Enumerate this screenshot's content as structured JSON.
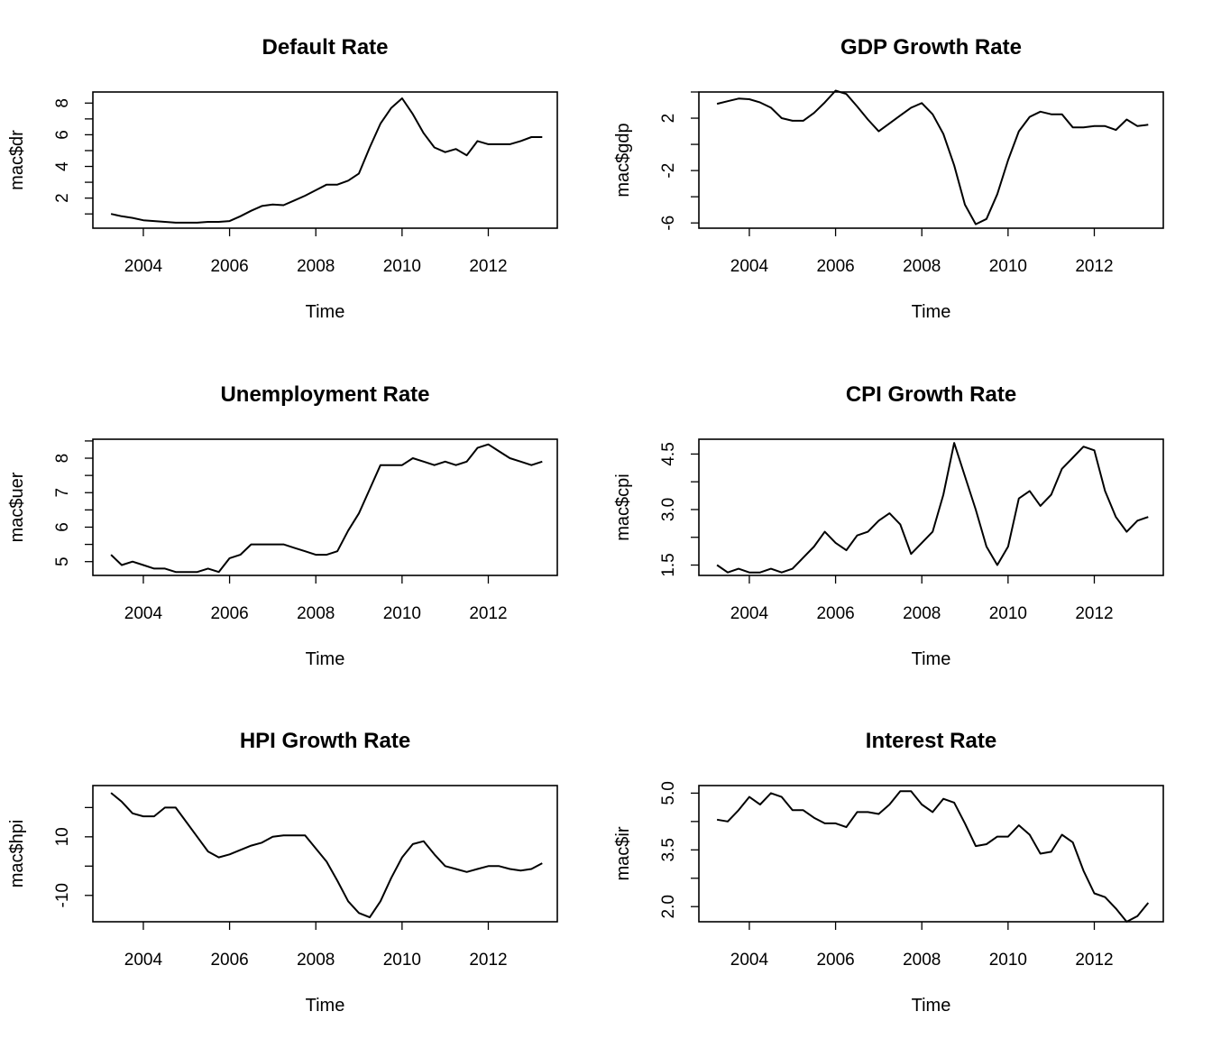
{
  "chart_data": [
    {
      "type": "line",
      "title": "Default Rate",
      "xlabel": "Time",
      "ylabel": "mac$dr",
      "x_ticks": [
        "2004",
        "2006",
        "2008",
        "2010",
        "2012"
      ],
      "y_ticks": [
        "2",
        "4",
        "6",
        "8"
      ],
      "xlim": [
        2002.83,
        2013.6
      ],
      "ylim": [
        0.1,
        8.7
      ],
      "x": [
        2003.25,
        2003.5,
        2003.75,
        2004.0,
        2004.25,
        2004.5,
        2004.75,
        2005.0,
        2005.25,
        2005.5,
        2005.75,
        2006.0,
        2006.25,
        2006.5,
        2006.75,
        2007.0,
        2007.25,
        2007.5,
        2007.75,
        2008.0,
        2008.25,
        2008.5,
        2008.75,
        2009.0,
        2009.25,
        2009.5,
        2009.75,
        2010.0,
        2010.25,
        2010.5,
        2010.75,
        2011.0,
        2011.25,
        2011.5,
        2011.75,
        2012.0,
        2012.25,
        2012.5,
        2012.75,
        2013.0,
        2013.25
      ],
      "values": [
        1.0,
        0.85,
        0.75,
        0.6,
        0.55,
        0.5,
        0.45,
        0.45,
        0.45,
        0.5,
        0.5,
        0.55,
        0.85,
        1.2,
        1.5,
        1.6,
        1.55,
        1.85,
        2.15,
        2.5,
        2.85,
        2.85,
        3.1,
        3.55,
        5.2,
        6.7,
        7.7,
        8.3,
        7.3,
        6.1,
        5.2,
        4.9,
        5.1,
        4.7,
        5.6,
        5.4,
        5.4,
        5.4,
        5.6,
        5.85,
        5.85
      ]
    },
    {
      "type": "line",
      "title": "GDP Growth Rate",
      "xlabel": "Time",
      "ylabel": "mac$gdp",
      "x_ticks": [
        "2004",
        "2006",
        "2008",
        "2010",
        "2012"
      ],
      "y_ticks": [
        "-6",
        "-2",
        "2"
      ],
      "xlim": [
        2002.83,
        2013.6
      ],
      "ylim": [
        -6.4,
        4.0
      ],
      "x": [
        2003.25,
        2003.5,
        2003.75,
        2004.0,
        2004.25,
        2004.5,
        2004.75,
        2005.0,
        2005.25,
        2005.5,
        2005.75,
        2006.0,
        2006.25,
        2006.5,
        2006.75,
        2007.0,
        2007.25,
        2007.5,
        2007.75,
        2008.0,
        2008.25,
        2008.5,
        2008.75,
        2009.0,
        2009.25,
        2009.5,
        2009.75,
        2010.0,
        2010.25,
        2010.5,
        2010.75,
        2011.0,
        2011.25,
        2011.5,
        2011.75,
        2012.0,
        2012.25,
        2012.5,
        2012.75,
        2013.0,
        2013.25
      ],
      "values": [
        3.1,
        3.3,
        3.5,
        3.45,
        3.2,
        2.8,
        2.0,
        1.8,
        1.8,
        2.4,
        3.2,
        4.1,
        3.85,
        2.9,
        1.9,
        1.0,
        1.6,
        2.2,
        2.8,
        3.15,
        2.3,
        0.8,
        -1.6,
        -4.6,
        -6.1,
        -5.7,
        -3.8,
        -1.2,
        1.0,
        2.1,
        2.5,
        2.3,
        2.3,
        1.3,
        1.3,
        1.4,
        1.4,
        1.1,
        1.9,
        1.4,
        1.5
      ]
    },
    {
      "type": "line",
      "title": "Unemployment Rate",
      "xlabel": "Time",
      "ylabel": "mac$uer",
      "x_ticks": [
        "2004",
        "2006",
        "2008",
        "2010",
        "2012"
      ],
      "y_ticks": [
        "5",
        "6",
        "7",
        "8"
      ],
      "xlim": [
        2002.83,
        2013.6
      ],
      "ylim": [
        4.6,
        8.55
      ],
      "x": [
        2003.25,
        2003.5,
        2003.75,
        2004.0,
        2004.25,
        2004.5,
        2004.75,
        2005.0,
        2005.25,
        2005.5,
        2005.75,
        2006.0,
        2006.25,
        2006.5,
        2006.75,
        2007.0,
        2007.25,
        2007.5,
        2007.75,
        2008.0,
        2008.25,
        2008.5,
        2008.75,
        2009.0,
        2009.25,
        2009.5,
        2009.75,
        2010.0,
        2010.25,
        2010.5,
        2010.75,
        2011.0,
        2011.25,
        2011.5,
        2011.75,
        2012.0,
        2012.25,
        2012.5,
        2012.75,
        2013.0,
        2013.25
      ],
      "values": [
        5.2,
        4.9,
        5.0,
        4.9,
        4.8,
        4.8,
        4.7,
        4.7,
        4.7,
        4.8,
        4.7,
        5.1,
        5.2,
        5.5,
        5.5,
        5.5,
        5.5,
        5.4,
        5.3,
        5.2,
        5.2,
        5.3,
        5.9,
        6.4,
        7.1,
        7.8,
        7.8,
        7.8,
        8.0,
        7.9,
        7.8,
        7.9,
        7.8,
        7.9,
        8.3,
        8.4,
        8.2,
        8.0,
        7.9,
        7.8,
        7.9
      ]
    },
    {
      "type": "line",
      "title": "CPI Growth Rate",
      "xlabel": "Time",
      "ylabel": "mac$cpi",
      "x_ticks": [
        "2004",
        "2006",
        "2008",
        "2010",
        "2012"
      ],
      "y_ticks": [
        "1.5",
        "3.0",
        "4.5"
      ],
      "xlim": [
        2002.83,
        2013.6
      ],
      "ylim": [
        1.22,
        4.9
      ],
      "x": [
        2003.25,
        2003.5,
        2003.75,
        2004.0,
        2004.25,
        2004.5,
        2004.75,
        2005.0,
        2005.25,
        2005.5,
        2005.75,
        2006.0,
        2006.25,
        2006.5,
        2006.75,
        2007.0,
        2007.25,
        2007.5,
        2007.75,
        2008.0,
        2008.25,
        2008.5,
        2008.75,
        2009.0,
        2009.25,
        2009.5,
        2009.75,
        2010.0,
        2010.25,
        2010.5,
        2010.75,
        2011.0,
        2011.25,
        2011.5,
        2011.75,
        2012.0,
        2012.25,
        2012.5,
        2012.75,
        2013.0,
        2013.25
      ],
      "values": [
        1.5,
        1.3,
        1.4,
        1.3,
        1.3,
        1.4,
        1.3,
        1.4,
        1.7,
        2.0,
        2.4,
        2.1,
        1.9,
        2.3,
        2.4,
        2.7,
        2.9,
        2.6,
        1.8,
        2.1,
        2.4,
        3.4,
        4.8,
        3.9,
        3.0,
        2.0,
        1.5,
        2.0,
        3.3,
        3.5,
        3.1,
        3.4,
        4.1,
        4.4,
        4.7,
        4.6,
        3.5,
        2.8,
        2.4,
        2.7,
        2.8
      ]
    },
    {
      "type": "line",
      "title": "HPI Growth Rate",
      "xlabel": "Time",
      "ylabel": "mac$hpi",
      "x_ticks": [
        "2004",
        "2006",
        "2008",
        "2010",
        "2012"
      ],
      "y_ticks": [
        "-10",
        "10"
      ],
      "xlim": [
        2002.83,
        2013.6
      ],
      "ylim": [
        -19.0,
        27.5
      ],
      "x": [
        2003.25,
        2003.5,
        2003.75,
        2004.0,
        2004.25,
        2004.5,
        2004.75,
        2005.0,
        2005.25,
        2005.5,
        2005.75,
        2006.0,
        2006.25,
        2006.5,
        2006.75,
        2007.0,
        2007.25,
        2007.5,
        2007.75,
        2008.0,
        2008.25,
        2008.5,
        2008.75,
        2009.0,
        2009.25,
        2009.5,
        2009.75,
        2010.0,
        2010.25,
        2010.5,
        2010.75,
        2011.0,
        2011.25,
        2011.5,
        2011.75,
        2012.0,
        2012.25,
        2012.5,
        2012.75,
        2013.0,
        2013.25
      ],
      "values": [
        25.0,
        22.0,
        18.0,
        17.0,
        17.0,
        20.0,
        20.0,
        15.0,
        10.0,
        5.0,
        3.0,
        4.0,
        5.5,
        7.0,
        8.0,
        10.0,
        10.5,
        10.5,
        10.5,
        6.0,
        1.5,
        -5.0,
        -12.0,
        -16.0,
        -17.5,
        -12.0,
        -4.0,
        3.0,
        7.5,
        8.5,
        4.0,
        0.0,
        -1.0,
        -2.0,
        -1.0,
        0.0,
        0.0,
        -1.0,
        -1.5,
        -1.0,
        1.0
      ]
    },
    {
      "type": "line",
      "title": "Interest Rate",
      "xlabel": "Time",
      "ylabel": "mac$ir",
      "x_ticks": [
        "2004",
        "2006",
        "2008",
        "2010",
        "2012"
      ],
      "y_ticks": [
        "2.0",
        "3.5",
        "5.0"
      ],
      "xlim": [
        2002.83,
        2013.6
      ],
      "ylim": [
        1.6,
        5.2
      ],
      "x": [
        2003.25,
        2003.5,
        2003.75,
        2004.0,
        2004.25,
        2004.5,
        2004.75,
        2005.0,
        2005.25,
        2005.5,
        2005.75,
        2006.0,
        2006.25,
        2006.5,
        2006.75,
        2007.0,
        2007.25,
        2007.5,
        2007.75,
        2008.0,
        2008.25,
        2008.5,
        2008.75,
        2009.0,
        2009.25,
        2009.5,
        2009.75,
        2010.0,
        2010.25,
        2010.5,
        2010.75,
        2011.0,
        2011.25,
        2011.5,
        2011.75,
        2012.0,
        2012.25,
        2012.5,
        2012.75,
        2013.0,
        2013.25
      ],
      "values": [
        4.3,
        4.25,
        4.55,
        4.9,
        4.7,
        5.0,
        4.9,
        4.55,
        4.55,
        4.35,
        4.2,
        4.2,
        4.1,
        4.5,
        4.5,
        4.45,
        4.7,
        5.05,
        5.05,
        4.7,
        4.5,
        4.85,
        4.75,
        4.2,
        3.6,
        3.65,
        3.85,
        3.85,
        4.15,
        3.9,
        3.4,
        3.45,
        3.9,
        3.7,
        2.95,
        2.35,
        2.25,
        1.95,
        1.6,
        1.75,
        2.1
      ]
    }
  ]
}
